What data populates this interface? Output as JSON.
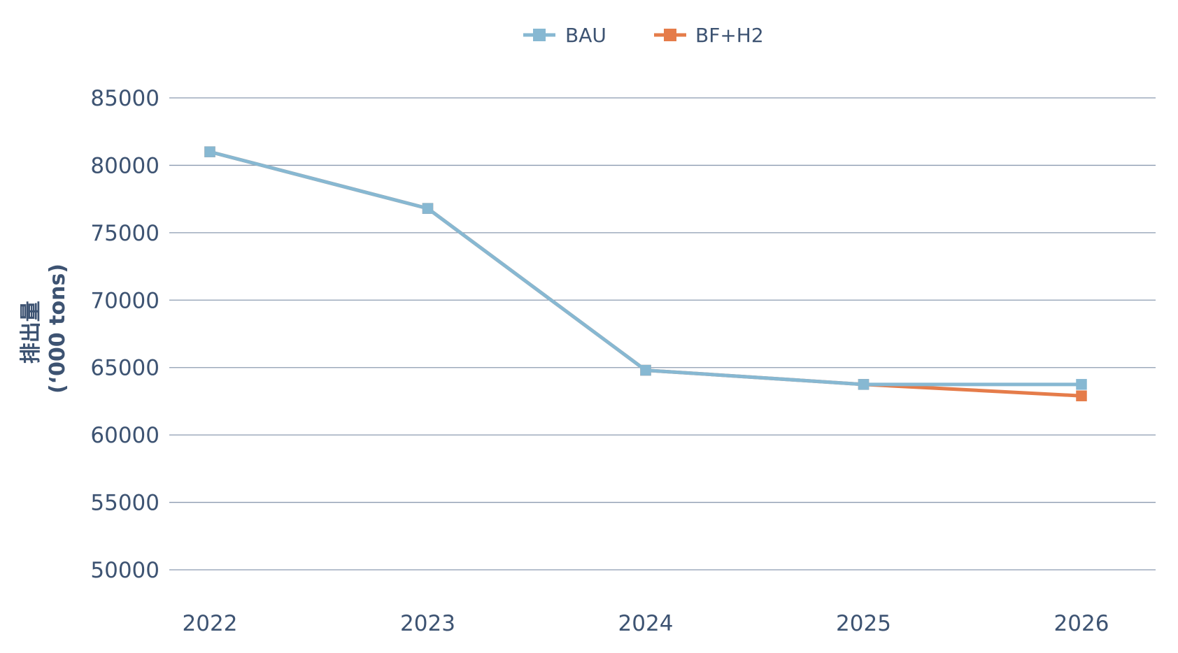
{
  "chart_data": {
    "type": "line",
    "title": "",
    "xlabel": "",
    "ylabel_line1": "排出量",
    "ylabel_line2": "(‘000 tons)",
    "categories": [
      "2022",
      "2023",
      "2024",
      "2025",
      "2026"
    ],
    "ylim": [
      50000,
      85000
    ],
    "yticks": [
      "50000",
      "55000",
      "60000",
      "65000",
      "70000",
      "75000",
      "80000",
      "85000"
    ],
    "grid": true,
    "legend_position": "top-center",
    "series": [
      {
        "name": "BAU",
        "color": "#87b8d2",
        "values": [
          81000,
          76800,
          64800,
          63750,
          63750
        ]
      },
      {
        "name": "BF+H2",
        "color": "#e57c4a",
        "values": [
          81000,
          76800,
          64800,
          63750,
          62900
        ]
      }
    ]
  }
}
